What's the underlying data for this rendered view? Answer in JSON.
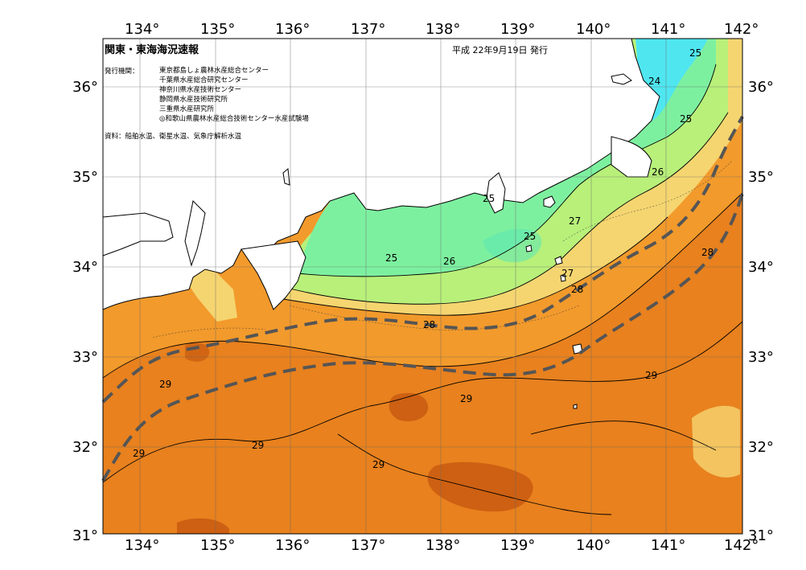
{
  "map": {
    "title": "関東・東海海況速報",
    "date": "平成 22年9月19日 発行",
    "issuer_label": "発行機関：",
    "issuers": [
      "東京都島しょ農林水産総合センター",
      "千葉県水産総合研究センター",
      "神奈川県水産技術センター",
      "静岡県水産技術研究所",
      "三重県水産研究所",
      "◎和歌山県農林水産総合技術センター水産試験場"
    ],
    "sources": "資料：船舶水温、衛星水温、気象庁解析水温",
    "lon_labels": [
      "134°",
      "135°",
      "136°",
      "137°",
      "138°",
      "139°",
      "140°",
      "141°",
      "142°"
    ],
    "lat_labels": [
      "36°",
      "35°",
      "34°",
      "33°",
      "32°",
      "31°"
    ],
    "isotherm_labels": [
      "25",
      "24",
      "25",
      "26",
      "25",
      "25",
      "27",
      "27",
      "28",
      "28",
      "25",
      "26",
      "28",
      "29",
      "29",
      "29",
      "29",
      "29",
      "29"
    ],
    "colors": {
      "sst_24": "#4fe6f0",
      "sst_25": "#7df0a0",
      "sst_26": "#b8f07a",
      "sst_27": "#f5d570",
      "sst_28": "#f29a2c",
      "sst_29": "#e8811e",
      "sst_30": "#c85a10",
      "land": "#ffffff",
      "kuroshio_axis": "#555555"
    }
  }
}
